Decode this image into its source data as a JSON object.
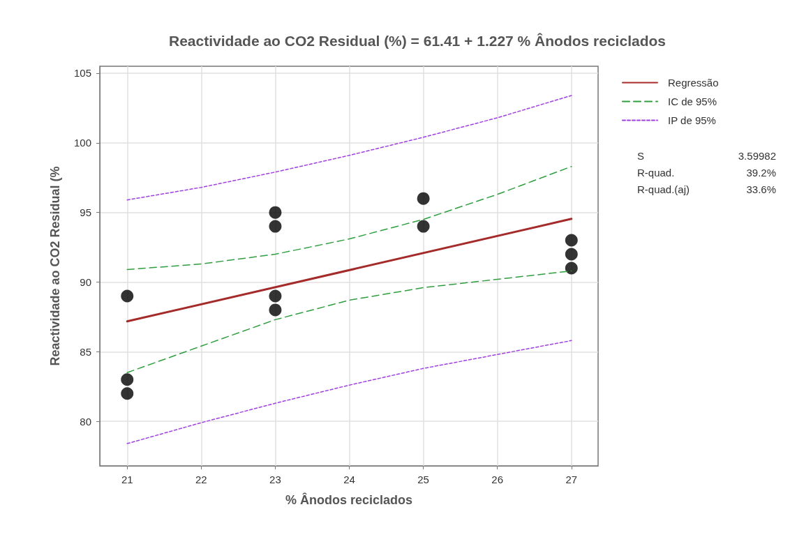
{
  "chart_data": {
    "type": "scatter",
    "title": "Reactividade ao CO2 Residual (%) = 61.41 + 1.227 % Ânodos reciclados",
    "xlabel": "% Ânodos reciclados",
    "ylabel": "Reactividade ao CO2 Residual (%",
    "xlim": [
      20.63,
      27.36
    ],
    "xticks": [
      21,
      22,
      23,
      24,
      25,
      26,
      27
    ],
    "ylim": [
      76.8,
      105.5
    ],
    "yticks": [
      80,
      85,
      90,
      95,
      100,
      105
    ],
    "grid": true,
    "legend": "top right",
    "marker": "circle",
    "series": [
      {
        "color": "#000000",
        "x": [
          21,
          21,
          21,
          23,
          23,
          23,
          23,
          25,
          25,
          27,
          27,
          27
        ],
        "values": [
          89,
          83,
          82,
          95,
          94,
          89,
          88,
          96,
          94,
          93,
          92,
          91
        ]
      },
      {
        "type": "line",
        "name": "Regressão",
        "color": "#a52a2a",
        "line_style": "solid",
        "marker": "none",
        "x": [
          21,
          27
        ],
        "values": [
          87.18,
          94.54
        ]
      },
      {
        "type": "line",
        "name": "IC de 95%",
        "color": "#2e9e3e",
        "line_style": "dashed",
        "marker": "none",
        "x": [
          21,
          22,
          23,
          24,
          25,
          26,
          27
        ],
        "values": [
          90.9,
          91.3,
          92.0,
          93.1,
          94.5,
          96.3,
          98.3
        ]
      },
      {
        "type": "line",
        "color": "#2e9e3e",
        "line_style": "dashed",
        "marker": "none",
        "x": [
          21,
          22,
          23,
          24,
          25,
          26,
          27
        ],
        "values": [
          83.5,
          85.4,
          87.3,
          88.7,
          89.6,
          90.2,
          90.8
        ]
      },
      {
        "type": "line",
        "name": "IP de 95%",
        "color": "#a040e0",
        "line_style": "dotted",
        "marker": "none",
        "x": [
          21,
          22,
          23,
          24,
          25,
          26,
          27
        ],
        "values": [
          95.9,
          96.8,
          97.9,
          99.1,
          100.4,
          101.8,
          103.4
        ]
      },
      {
        "type": "line",
        "color": "#a040e0",
        "line_style": "dotted",
        "marker": "none",
        "x": [
          21,
          22,
          23,
          24,
          25,
          26,
          27
        ],
        "values": [
          78.4,
          79.9,
          81.3,
          82.6,
          83.8,
          84.8,
          85.8
        ]
      }
    ],
    "annotations": [
      "S",
      "3.59982",
      "R-quad.",
      "39.2%",
      "R-quad.(aj)",
      "33.6%"
    ]
  }
}
